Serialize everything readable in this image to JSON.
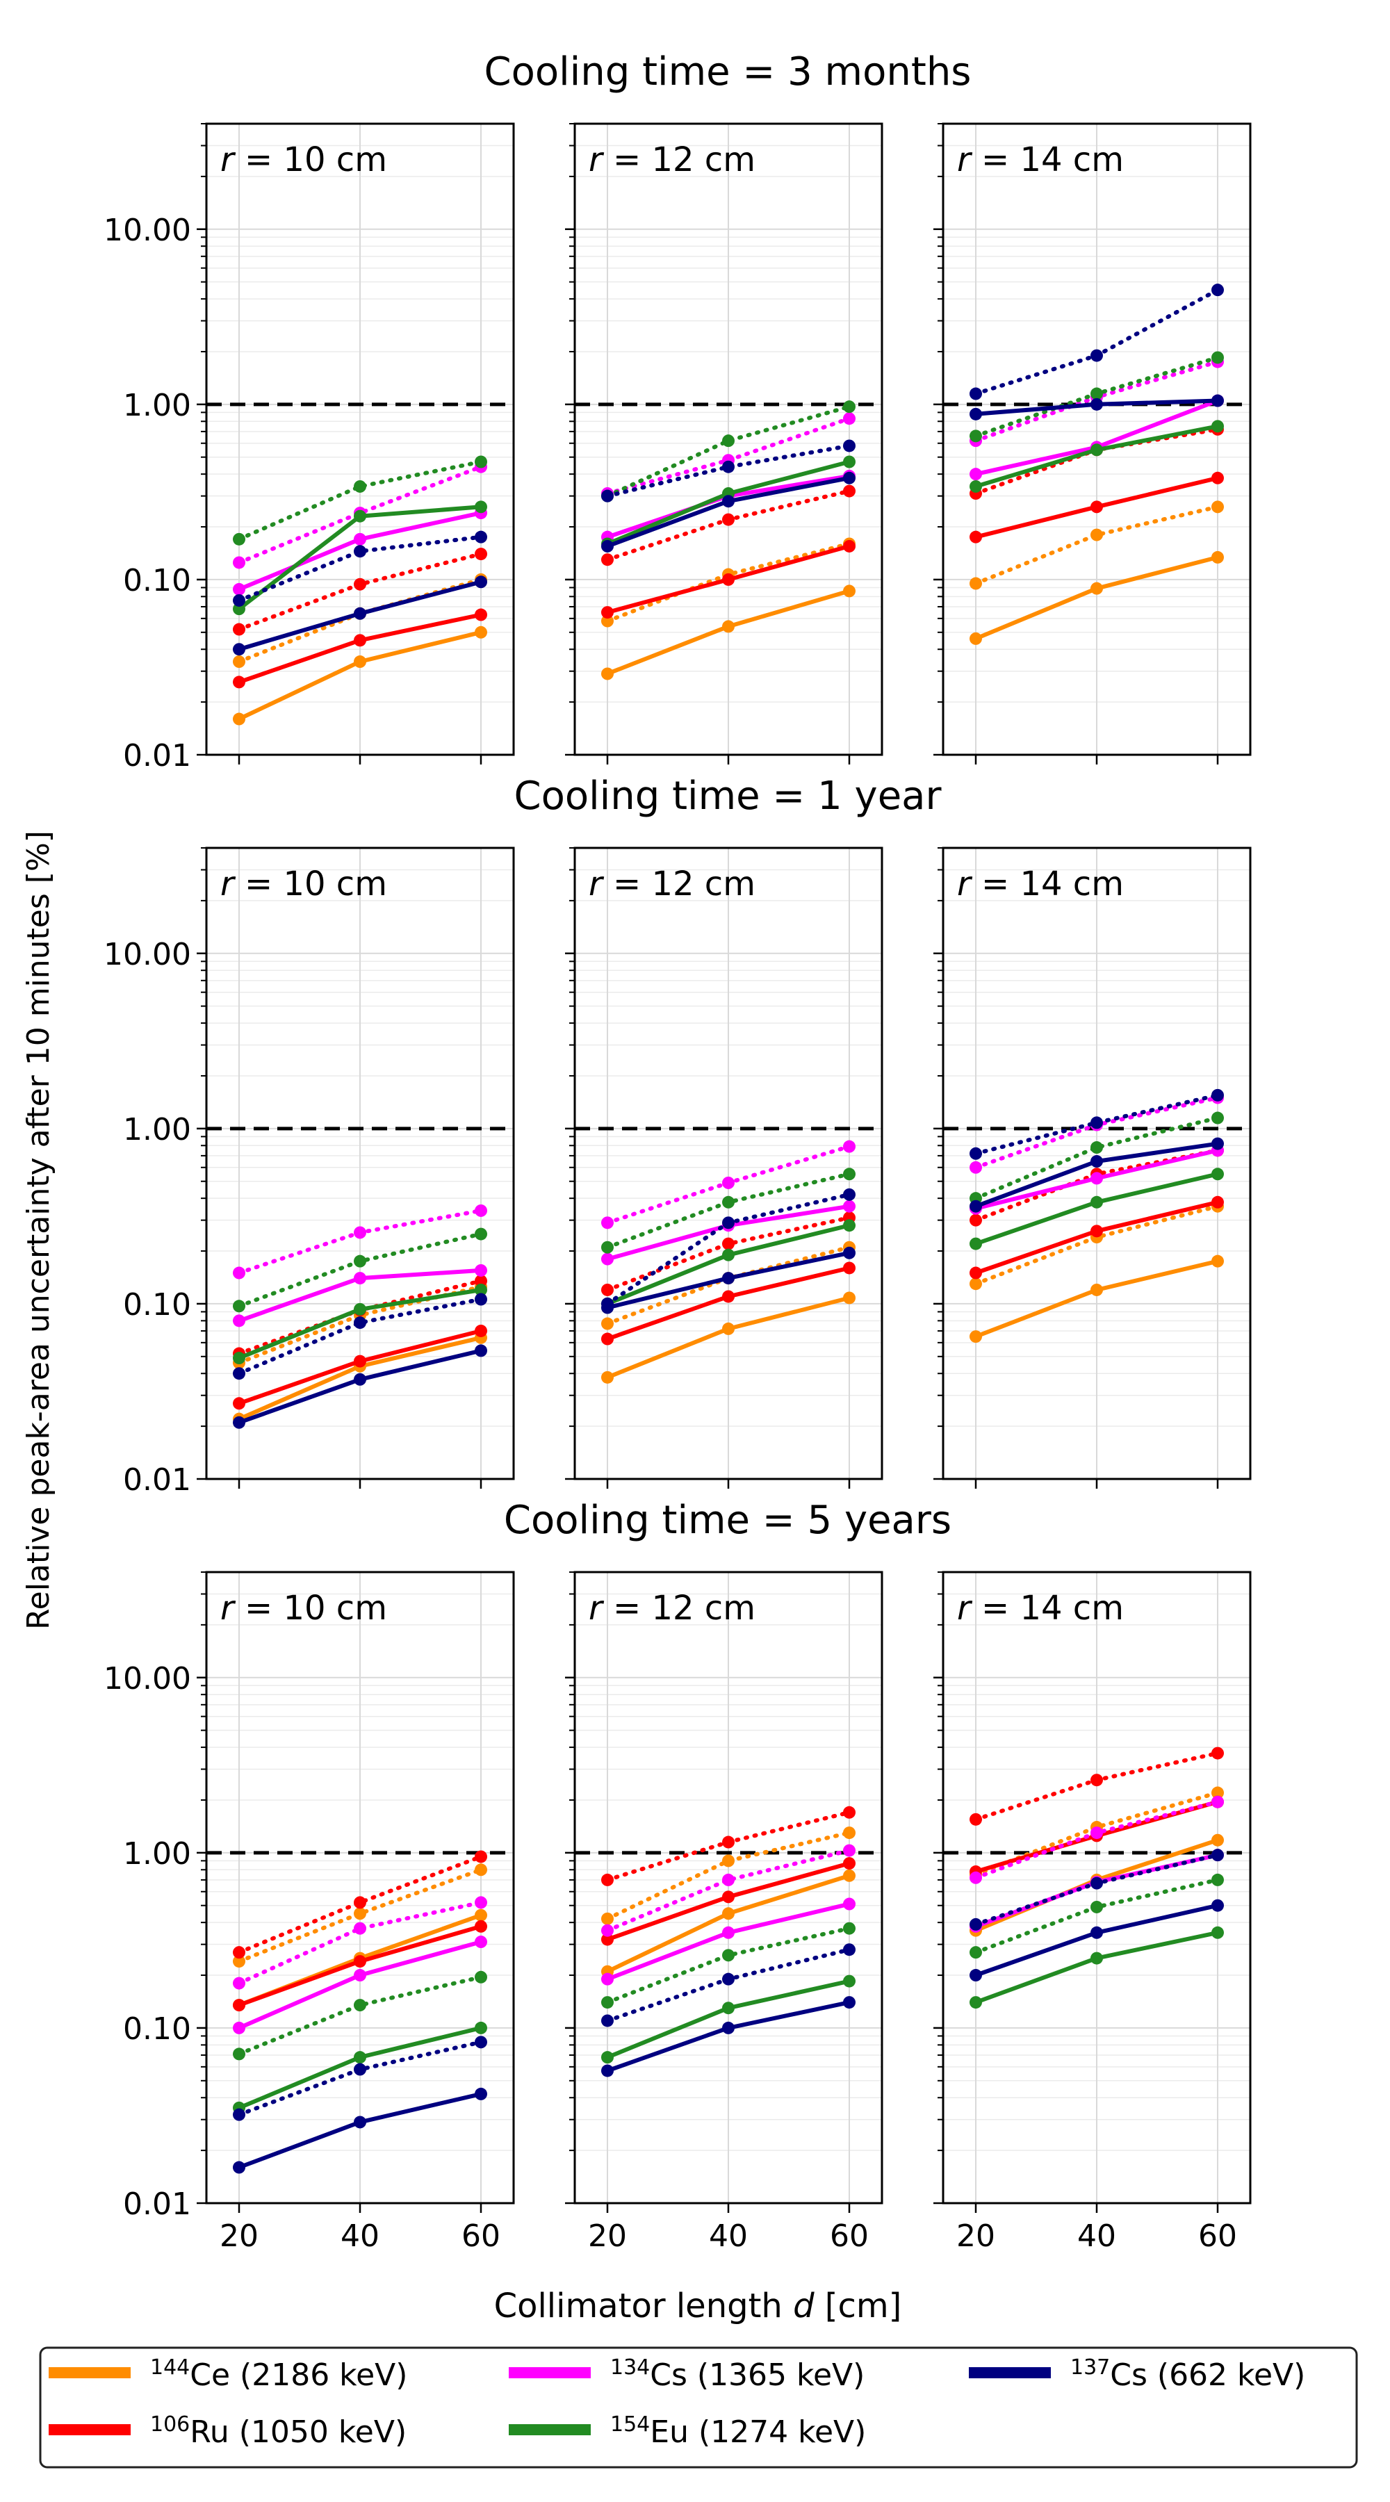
{
  "figure": {
    "ylabel": "Relative peak-area uncertainty after 10 minutes [%]",
    "xlabel": "Collimator length d [cm]"
  },
  "legend": {
    "placement": "bottom-center",
    "entries": [
      {
        "sup": "144",
        "name": "Ce (2186 keV)",
        "color": "#ff8c00"
      },
      {
        "sup": "106",
        "name": "Ru (1050 keV)",
        "color": "#ff0000"
      },
      {
        "sup": "134",
        "name": "Cs (1365 keV)",
        "color": "#ff00ff"
      },
      {
        "sup": "154",
        "name": "Eu (1274 keV)",
        "color": "#228b22"
      },
      {
        "sup": "137",
        "name": "Cs (662 keV)",
        "color": "#000080"
      }
    ]
  },
  "chart_data": [
    {
      "type": "line",
      "title": "Cooling time = 3 months",
      "panel_label": "r = 10 cm",
      "x": [
        20,
        40,
        60
      ],
      "ylim": [
        0.01,
        40
      ],
      "yscale": "log",
      "reference_line": 1.0,
      "series": [
        {
          "isotope": "Ce",
          "style": "solid",
          "values": [
            0.016,
            0.034,
            0.05
          ]
        },
        {
          "isotope": "Ce",
          "style": "dotted",
          "values": [
            0.034,
            0.064,
            0.1
          ]
        },
        {
          "isotope": "Ru",
          "style": "solid",
          "values": [
            0.026,
            0.045,
            0.063
          ]
        },
        {
          "isotope": "Ru",
          "style": "dotted",
          "values": [
            0.052,
            0.094,
            0.14
          ]
        },
        {
          "isotope": "Cs134",
          "style": "solid",
          "values": [
            0.088,
            0.17,
            0.24
          ]
        },
        {
          "isotope": "Cs134",
          "style": "dotted",
          "values": [
            0.125,
            0.24,
            0.44
          ]
        },
        {
          "isotope": "Eu",
          "style": "solid",
          "values": [
            0.068,
            0.23,
            0.26
          ]
        },
        {
          "isotope": "Eu",
          "style": "dotted",
          "values": [
            0.17,
            0.34,
            0.47
          ]
        },
        {
          "isotope": "Cs137",
          "style": "solid",
          "values": [
            0.04,
            0.064,
            0.097
          ]
        },
        {
          "isotope": "Cs137",
          "style": "dotted",
          "values": [
            0.076,
            0.145,
            0.175
          ]
        }
      ]
    },
    {
      "type": "line",
      "title": "Cooling time = 3 months",
      "panel_label": "r = 12 cm",
      "x": [
        20,
        40,
        60
      ],
      "ylim": [
        0.01,
        40
      ],
      "yscale": "log",
      "reference_line": 1.0,
      "series": [
        {
          "isotope": "Ce",
          "style": "solid",
          "values": [
            0.029,
            0.054,
            0.086
          ]
        },
        {
          "isotope": "Ce",
          "style": "dotted",
          "values": [
            0.058,
            0.107,
            0.16
          ]
        },
        {
          "isotope": "Ru",
          "style": "solid",
          "values": [
            0.065,
            0.1,
            0.155
          ]
        },
        {
          "isotope": "Ru",
          "style": "dotted",
          "values": [
            0.13,
            0.22,
            0.32
          ]
        },
        {
          "isotope": "Cs134",
          "style": "solid",
          "values": [
            0.175,
            0.3,
            0.39
          ]
        },
        {
          "isotope": "Cs134",
          "style": "dotted",
          "values": [
            0.31,
            0.48,
            0.83
          ]
        },
        {
          "isotope": "Eu",
          "style": "solid",
          "values": [
            0.16,
            0.31,
            0.47
          ]
        },
        {
          "isotope": "Eu",
          "style": "dotted",
          "values": [
            0.3,
            0.62,
            0.97
          ]
        },
        {
          "isotope": "Cs137",
          "style": "solid",
          "values": [
            0.155,
            0.28,
            0.38
          ]
        },
        {
          "isotope": "Cs137",
          "style": "dotted",
          "values": [
            0.3,
            0.44,
            0.58
          ]
        }
      ]
    },
    {
      "type": "line",
      "title": "Cooling time = 3 months",
      "panel_label": "r = 14 cm",
      "x": [
        20,
        40,
        60
      ],
      "ylim": [
        0.01,
        40
      ],
      "yscale": "log",
      "reference_line": 1.0,
      "series": [
        {
          "isotope": "Ce",
          "style": "solid",
          "values": [
            0.046,
            0.089,
            0.134
          ]
        },
        {
          "isotope": "Ce",
          "style": "dotted",
          "values": [
            0.095,
            0.18,
            0.26
          ]
        },
        {
          "isotope": "Ru",
          "style": "solid",
          "values": [
            0.175,
            0.26,
            0.38
          ]
        },
        {
          "isotope": "Ru",
          "style": "dotted",
          "values": [
            0.31,
            0.55,
            0.72
          ]
        },
        {
          "isotope": "Cs134",
          "style": "solid",
          "values": [
            0.4,
            0.57,
            1.05
          ]
        },
        {
          "isotope": "Cs134",
          "style": "dotted",
          "values": [
            0.62,
            1.1,
            1.75
          ]
        },
        {
          "isotope": "Eu",
          "style": "solid",
          "values": [
            0.34,
            0.55,
            0.75
          ]
        },
        {
          "isotope": "Eu",
          "style": "dotted",
          "values": [
            0.66,
            1.15,
            1.85
          ]
        },
        {
          "isotope": "Cs137",
          "style": "solid",
          "values": [
            0.88,
            1.0,
            1.05
          ]
        },
        {
          "isotope": "Cs137",
          "style": "dotted",
          "values": [
            1.15,
            1.9,
            4.5
          ]
        }
      ]
    },
    {
      "type": "line",
      "title": "Cooling time = 1 year",
      "panel_label": "r = 10 cm",
      "x": [
        20,
        40,
        60
      ],
      "ylim": [
        0.01,
        40
      ],
      "yscale": "log",
      "reference_line": 1.0,
      "series": [
        {
          "isotope": "Ce",
          "style": "solid",
          "values": [
            0.022,
            0.044,
            0.064
          ]
        },
        {
          "isotope": "Ce",
          "style": "dotted",
          "values": [
            0.046,
            0.086,
            0.125
          ]
        },
        {
          "isotope": "Ru",
          "style": "solid",
          "values": [
            0.027,
            0.047,
            0.07
          ]
        },
        {
          "isotope": "Ru",
          "style": "dotted",
          "values": [
            0.052,
            0.092,
            0.135
          ]
        },
        {
          "isotope": "Cs134",
          "style": "solid",
          "values": [
            0.08,
            0.14,
            0.155
          ]
        },
        {
          "isotope": "Cs134",
          "style": "dotted",
          "values": [
            0.15,
            0.255,
            0.34
          ]
        },
        {
          "isotope": "Eu",
          "style": "solid",
          "values": [
            0.049,
            0.093,
            0.12
          ]
        },
        {
          "isotope": "Eu",
          "style": "dotted",
          "values": [
            0.097,
            0.175,
            0.25
          ]
        },
        {
          "isotope": "Cs137",
          "style": "solid",
          "values": [
            0.021,
            0.037,
            0.054
          ]
        },
        {
          "isotope": "Cs137",
          "style": "dotted",
          "values": [
            0.04,
            0.078,
            0.106
          ]
        }
      ]
    },
    {
      "type": "line",
      "title": "Cooling time = 1 year",
      "panel_label": "r = 12 cm",
      "x": [
        20,
        40,
        60
      ],
      "ylim": [
        0.01,
        40
      ],
      "yscale": "log",
      "reference_line": 1.0,
      "series": [
        {
          "isotope": "Ce",
          "style": "solid",
          "values": [
            0.038,
            0.072,
            0.108
          ]
        },
        {
          "isotope": "Ce",
          "style": "dotted",
          "values": [
            0.077,
            0.14,
            0.21
          ]
        },
        {
          "isotope": "Ru",
          "style": "solid",
          "values": [
            0.063,
            0.11,
            0.16
          ]
        },
        {
          "isotope": "Ru",
          "style": "dotted",
          "values": [
            0.12,
            0.22,
            0.31
          ]
        },
        {
          "isotope": "Cs134",
          "style": "solid",
          "values": [
            0.18,
            0.28,
            0.36
          ]
        },
        {
          "isotope": "Cs134",
          "style": "dotted",
          "values": [
            0.29,
            0.49,
            0.79
          ]
        },
        {
          "isotope": "Eu",
          "style": "solid",
          "values": [
            0.1,
            0.19,
            0.28
          ]
        },
        {
          "isotope": "Eu",
          "style": "dotted",
          "values": [
            0.21,
            0.38,
            0.55
          ]
        },
        {
          "isotope": "Cs137",
          "style": "solid",
          "values": [
            0.095,
            0.14,
            0.195
          ]
        },
        {
          "isotope": "Cs137",
          "style": "dotted",
          "values": [
            0.1,
            0.29,
            0.42
          ]
        }
      ]
    },
    {
      "type": "line",
      "title": "Cooling time = 1 year",
      "panel_label": "r = 14 cm",
      "x": [
        20,
        40,
        60
      ],
      "ylim": [
        0.01,
        40
      ],
      "yscale": "log",
      "reference_line": 1.0,
      "series": [
        {
          "isotope": "Ce",
          "style": "solid",
          "values": [
            0.065,
            0.12,
            0.175
          ]
        },
        {
          "isotope": "Ce",
          "style": "dotted",
          "values": [
            0.13,
            0.24,
            0.36
          ]
        },
        {
          "isotope": "Ru",
          "style": "solid",
          "values": [
            0.15,
            0.26,
            0.38
          ]
        },
        {
          "isotope": "Ru",
          "style": "dotted",
          "values": [
            0.3,
            0.55,
            0.75
          ]
        },
        {
          "isotope": "Cs134",
          "style": "solid",
          "values": [
            0.35,
            0.52,
            0.75
          ]
        },
        {
          "isotope": "Cs134",
          "style": "dotted",
          "values": [
            0.6,
            1.05,
            1.5
          ]
        },
        {
          "isotope": "Eu",
          "style": "solid",
          "values": [
            0.22,
            0.38,
            0.55
          ]
        },
        {
          "isotope": "Eu",
          "style": "dotted",
          "values": [
            0.4,
            0.78,
            1.15
          ]
        },
        {
          "isotope": "Cs137",
          "style": "solid",
          "values": [
            0.36,
            0.65,
            0.82
          ]
        },
        {
          "isotope": "Cs137",
          "style": "dotted",
          "values": [
            0.72,
            1.08,
            1.55
          ]
        }
      ]
    },
    {
      "type": "line",
      "title": "Cooling time = 5 years",
      "panel_label": "r = 10 cm",
      "x": [
        20,
        40,
        60
      ],
      "ylim": [
        0.01,
        40
      ],
      "yscale": "log",
      "reference_line": 1.0,
      "series": [
        {
          "isotope": "Ce",
          "style": "solid",
          "values": [
            0.135,
            0.25,
            0.44
          ]
        },
        {
          "isotope": "Ce",
          "style": "dotted",
          "values": [
            0.24,
            0.45,
            0.8
          ]
        },
        {
          "isotope": "Ru",
          "style": "solid",
          "values": [
            0.135,
            0.24,
            0.38
          ]
        },
        {
          "isotope": "Ru",
          "style": "dotted",
          "values": [
            0.27,
            0.52,
            0.95
          ]
        },
        {
          "isotope": "Cs134",
          "style": "solid",
          "values": [
            0.1,
            0.2,
            0.31
          ]
        },
        {
          "isotope": "Cs134",
          "style": "dotted",
          "values": [
            0.18,
            0.37,
            0.52
          ]
        },
        {
          "isotope": "Eu",
          "style": "solid",
          "values": [
            0.035,
            0.068,
            0.1
          ]
        },
        {
          "isotope": "Eu",
          "style": "dotted",
          "values": [
            0.071,
            0.135,
            0.195
          ]
        },
        {
          "isotope": "Cs137",
          "style": "solid",
          "values": [
            0.016,
            0.029,
            0.042
          ]
        },
        {
          "isotope": "Cs137",
          "style": "dotted",
          "values": [
            0.032,
            0.058,
            0.083
          ]
        }
      ]
    },
    {
      "type": "line",
      "title": "Cooling time = 5 years",
      "panel_label": "r = 12 cm",
      "x": [
        20,
        40,
        60
      ],
      "ylim": [
        0.01,
        40
      ],
      "yscale": "log",
      "reference_line": 1.0,
      "series": [
        {
          "isotope": "Ce",
          "style": "solid",
          "values": [
            0.21,
            0.45,
            0.74
          ]
        },
        {
          "isotope": "Ce",
          "style": "dotted",
          "values": [
            0.42,
            0.9,
            1.3
          ]
        },
        {
          "isotope": "Ru",
          "style": "solid",
          "values": [
            0.32,
            0.56,
            0.87
          ]
        },
        {
          "isotope": "Ru",
          "style": "dotted",
          "values": [
            0.7,
            1.15,
            1.7
          ]
        },
        {
          "isotope": "Cs134",
          "style": "solid",
          "values": [
            0.19,
            0.35,
            0.51
          ]
        },
        {
          "isotope": "Cs134",
          "style": "dotted",
          "values": [
            0.36,
            0.7,
            1.03
          ]
        },
        {
          "isotope": "Eu",
          "style": "solid",
          "values": [
            0.068,
            0.13,
            0.185
          ]
        },
        {
          "isotope": "Eu",
          "style": "dotted",
          "values": [
            0.14,
            0.26,
            0.37
          ]
        },
        {
          "isotope": "Cs137",
          "style": "solid",
          "values": [
            0.057,
            0.1,
            0.14
          ]
        },
        {
          "isotope": "Cs137",
          "style": "dotted",
          "values": [
            0.11,
            0.19,
            0.28
          ]
        }
      ]
    },
    {
      "type": "line",
      "title": "Cooling time = 5 years",
      "panel_label": "r = 14 cm",
      "x": [
        20,
        40,
        60
      ],
      "ylim": [
        0.01,
        40
      ],
      "yscale": "log",
      "reference_line": 1.0,
      "series": [
        {
          "isotope": "Ce",
          "style": "solid",
          "values": [
            0.36,
            0.7,
            1.18
          ]
        },
        {
          "isotope": "Ce",
          "style": "dotted",
          "values": [
            0.75,
            1.4,
            2.2
          ]
        },
        {
          "isotope": "Ru",
          "style": "solid",
          "values": [
            0.78,
            1.25,
            1.95
          ]
        },
        {
          "isotope": "Ru",
          "style": "dotted",
          "values": [
            1.55,
            2.6,
            3.7
          ]
        },
        {
          "isotope": "Cs134",
          "style": "solid",
          "values": [
            0.38,
            0.68,
            0.97
          ]
        },
        {
          "isotope": "Cs134",
          "style": "dotted",
          "values": [
            0.72,
            1.3,
            1.95
          ]
        },
        {
          "isotope": "Eu",
          "style": "solid",
          "values": [
            0.14,
            0.25,
            0.35
          ]
        },
        {
          "isotope": "Eu",
          "style": "dotted",
          "values": [
            0.27,
            0.49,
            0.7
          ]
        },
        {
          "isotope": "Cs137",
          "style": "solid",
          "values": [
            0.2,
            0.35,
            0.5
          ]
        },
        {
          "isotope": "Cs137",
          "style": "dotted",
          "values": [
            0.39,
            0.67,
            0.97
          ]
        }
      ]
    }
  ]
}
